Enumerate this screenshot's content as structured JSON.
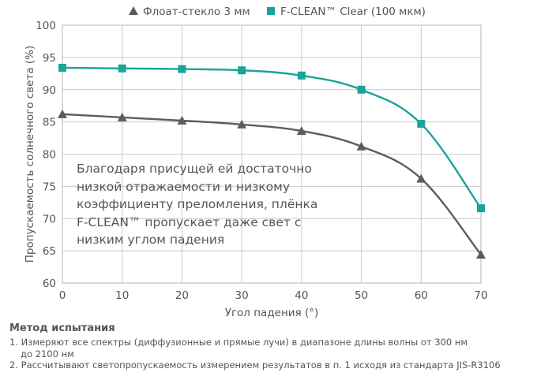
{
  "chart_data": {
    "type": "line",
    "x": [
      0,
      10,
      20,
      30,
      40,
      50,
      60,
      70
    ],
    "xlim": [
      0,
      70
    ],
    "ylim": [
      60,
      100
    ],
    "xticks": [
      "0",
      "10",
      "20",
      "30",
      "40",
      "50",
      "60",
      "70"
    ],
    "yticks": [
      "60",
      "65",
      "70",
      "75",
      "80",
      "85",
      "90",
      "95",
      "100"
    ],
    "xlabel": "Угол падения (°)",
    "ylabel": "Пропускаемость солнечного света (%)",
    "grid": true,
    "legend_position": "top",
    "series": [
      {
        "name": "Флоат-стекло 3 мм",
        "marker": "triangle",
        "color": "#5c5c5c",
        "values": [
          86.2,
          85.7,
          85.2,
          84.6,
          83.6,
          81.2,
          76.2,
          64.4
        ]
      },
      {
        "name": "F-CLEAN™ Clear (100 мкм)",
        "marker": "square",
        "color": "#1aa39a",
        "values": [
          93.4,
          93.3,
          93.2,
          93.0,
          92.2,
          90.0,
          84.7,
          71.6
        ]
      }
    ],
    "annotation": "Благодаря присущей ей достаточно\nнизкой отражаемости и низкому\nкоэффициенту преломления, плёнка\nF-CLEAN™ пропускает даже свет с\nнизким углом падения"
  },
  "method": {
    "title": "Метод испытания",
    "line1_a": "1. Измеряют все спектры (диффузионные и прямые лучи) в диапазоне длины волны от 300 нм",
    "line1_b": "до 2100 нм",
    "line2": "2. Рассчитывают светопропускаемость измерением результатов в п. 1 исходя из стандарта JIS-R3106"
  }
}
